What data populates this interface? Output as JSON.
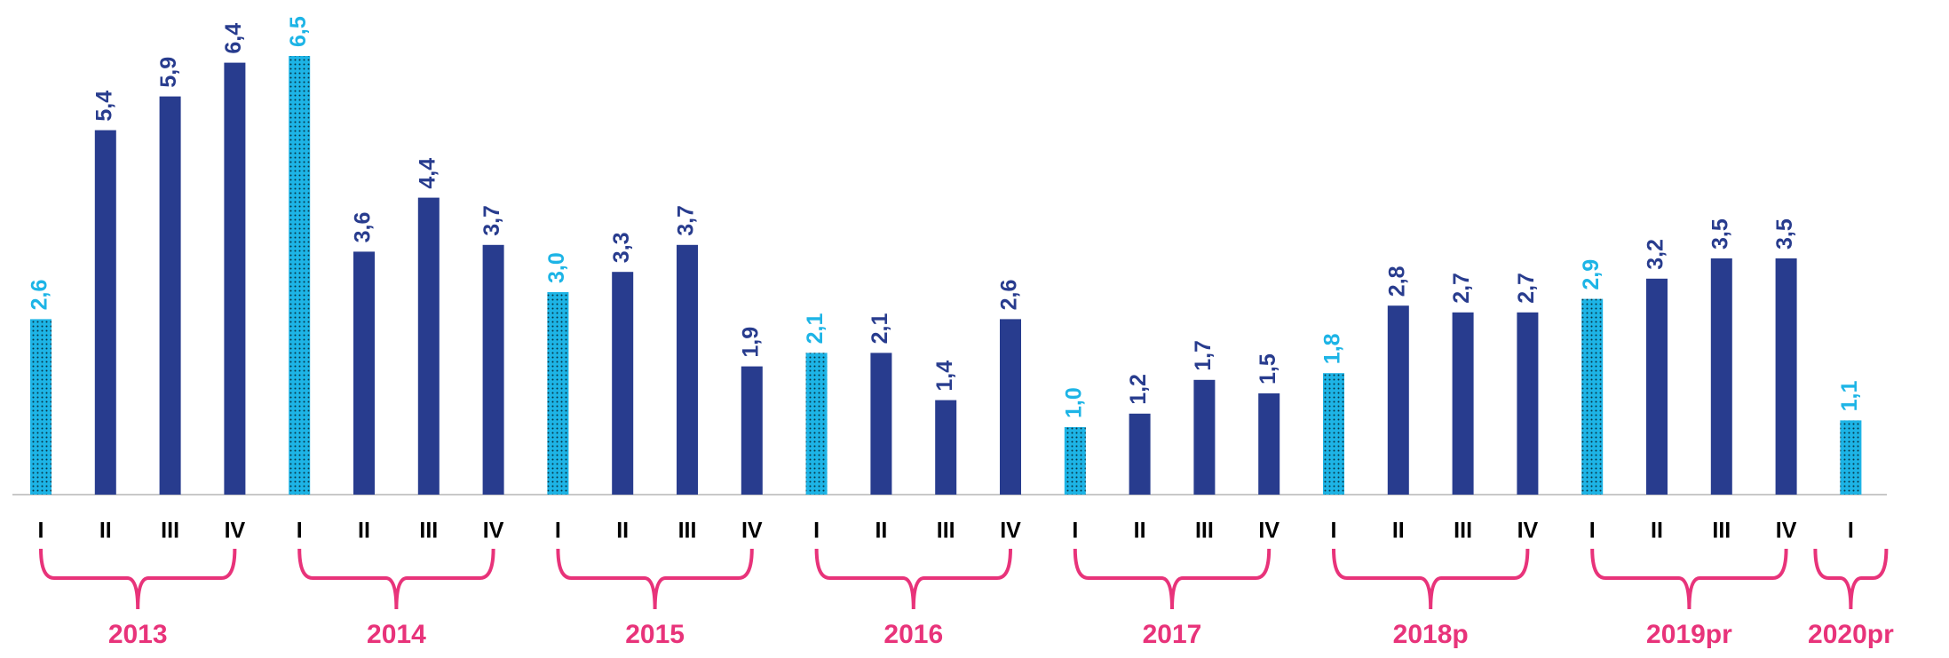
{
  "chart_data": {
    "type": "bar",
    "groups": [
      {
        "name": "2013",
        "categories": [
          "I",
          "II",
          "III",
          "IV"
        ],
        "values": [
          2.6,
          5.4,
          5.9,
          6.4
        ],
        "value_labels": [
          "2,6",
          "5,4",
          "5,9",
          "6,4"
        ],
        "colors": [
          "#1db4e6",
          "#283c8e",
          "#283c8e",
          "#283c8e"
        ]
      },
      {
        "name": "2014",
        "categories": [
          "I",
          "II",
          "III",
          "IV"
        ],
        "values": [
          6.5,
          3.6,
          4.4,
          3.7
        ],
        "value_labels": [
          "6,5",
          "3,6",
          "4,4",
          "3,7"
        ],
        "colors": [
          "#1db4e6",
          "#283c8e",
          "#283c8e",
          "#283c8e"
        ]
      },
      {
        "name": "2015",
        "categories": [
          "I",
          "II",
          "III",
          "IV"
        ],
        "values": [
          3.0,
          3.3,
          3.7,
          1.9
        ],
        "value_labels": [
          "3,0",
          "3,3",
          "3,7",
          "1,9"
        ],
        "colors": [
          "#1db4e6",
          "#283c8e",
          "#283c8e",
          "#283c8e"
        ]
      },
      {
        "name": "2016",
        "categories": [
          "I",
          "II",
          "III",
          "IV"
        ],
        "values": [
          2.1,
          2.1,
          1.4,
          2.6
        ],
        "value_labels": [
          "2,1",
          "2,1",
          "1,4",
          "2,6"
        ],
        "colors": [
          "#1db4e6",
          "#283c8e",
          "#283c8e",
          "#283c8e"
        ]
      },
      {
        "name": "2017",
        "categories": [
          "I",
          "II",
          "III",
          "IV"
        ],
        "values": [
          1.0,
          1.2,
          1.7,
          1.5
        ],
        "value_labels": [
          "1,0",
          "1,2",
          "1,7",
          "1,5"
        ],
        "colors": [
          "#1db4e6",
          "#283c8e",
          "#283c8e",
          "#283c8e"
        ]
      },
      {
        "name": "2018p",
        "categories": [
          "I",
          "II",
          "III",
          "IV"
        ],
        "values": [
          1.8,
          2.8,
          2.7,
          2.7
        ],
        "value_labels": [
          "1,8",
          "2,8",
          "2,7",
          "2,7"
        ],
        "colors": [
          "#1db4e6",
          "#283c8e",
          "#283c8e",
          "#283c8e"
        ]
      },
      {
        "name": "2019pr",
        "categories": [
          "I",
          "II",
          "III",
          "IV"
        ],
        "values": [
          2.9,
          3.2,
          3.5,
          3.5
        ],
        "value_labels": [
          "2,9",
          "3,2",
          "3,5",
          "3,5"
        ],
        "colors": [
          "#1db4e6",
          "#283c8e",
          "#283c8e",
          "#283c8e"
        ]
      },
      {
        "name": "2020pr",
        "categories": [
          "I"
        ],
        "values": [
          1.1
        ],
        "value_labels": [
          "1,1"
        ],
        "colors": [
          "#1db4e6"
        ]
      }
    ],
    "group_color": "#e8337a"
  }
}
